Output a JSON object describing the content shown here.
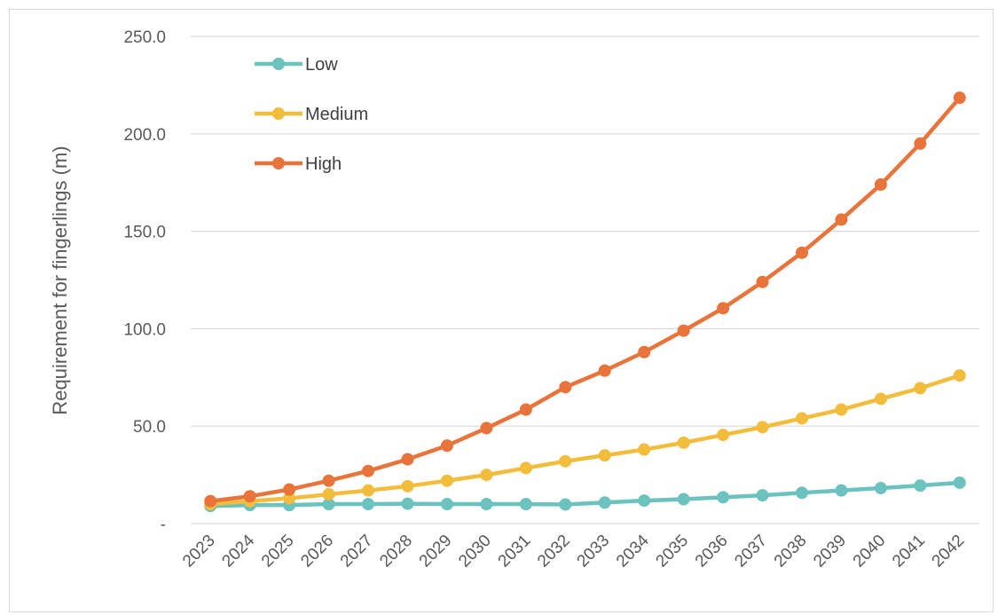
{
  "chart_data": {
    "type": "line",
    "title": "",
    "xlabel": "",
    "ylabel": "Requirement for fingerlings (m)",
    "ylim": [
      0,
      250
    ],
    "y_ticks": [
      {
        "value": 0,
        "label": "-"
      },
      {
        "value": 50,
        "label": "50.0"
      },
      {
        "value": 100,
        "label": "100.0"
      },
      {
        "value": 150,
        "label": "150.0"
      },
      {
        "value": 200,
        "label": "200.0"
      },
      {
        "value": 250,
        "label": "250.0"
      }
    ],
    "grid": true,
    "legend_position": "top-left",
    "categories": [
      "2023",
      "2024",
      "2025",
      "2026",
      "2027",
      "2028",
      "2029",
      "2030",
      "2031",
      "2032",
      "2033",
      "2034",
      "2035",
      "2036",
      "2037",
      "2038",
      "2039",
      "2040",
      "2041",
      "2042"
    ],
    "series": [
      {
        "name": "Low",
        "color": "#6bc2be",
        "values": [
          9.0,
          9.5,
          9.5,
          10.0,
          10.0,
          10.2,
          10.0,
          10.0,
          10.0,
          9.8,
          10.8,
          11.8,
          12.5,
          13.5,
          14.5,
          15.8,
          17.0,
          18.2,
          19.5,
          21.0
        ]
      },
      {
        "name": "Medium",
        "color": "#f2bd3d",
        "values": [
          10.0,
          11.5,
          13.0,
          15.0,
          17.0,
          19.2,
          22.0,
          25.0,
          28.5,
          32.0,
          35.0,
          38.0,
          41.5,
          45.5,
          49.5,
          54.0,
          58.5,
          64.0,
          69.5,
          76.0
        ]
      },
      {
        "name": "High",
        "color": "#e8743b",
        "values": [
          11.5,
          14.0,
          17.5,
          22.0,
          27.0,
          33.0,
          40.0,
          49.0,
          58.5,
          70.0,
          78.5,
          88.0,
          99.0,
          110.5,
          124.0,
          139.0,
          156.0,
          174.0,
          195.0,
          218.5
        ]
      }
    ]
  }
}
